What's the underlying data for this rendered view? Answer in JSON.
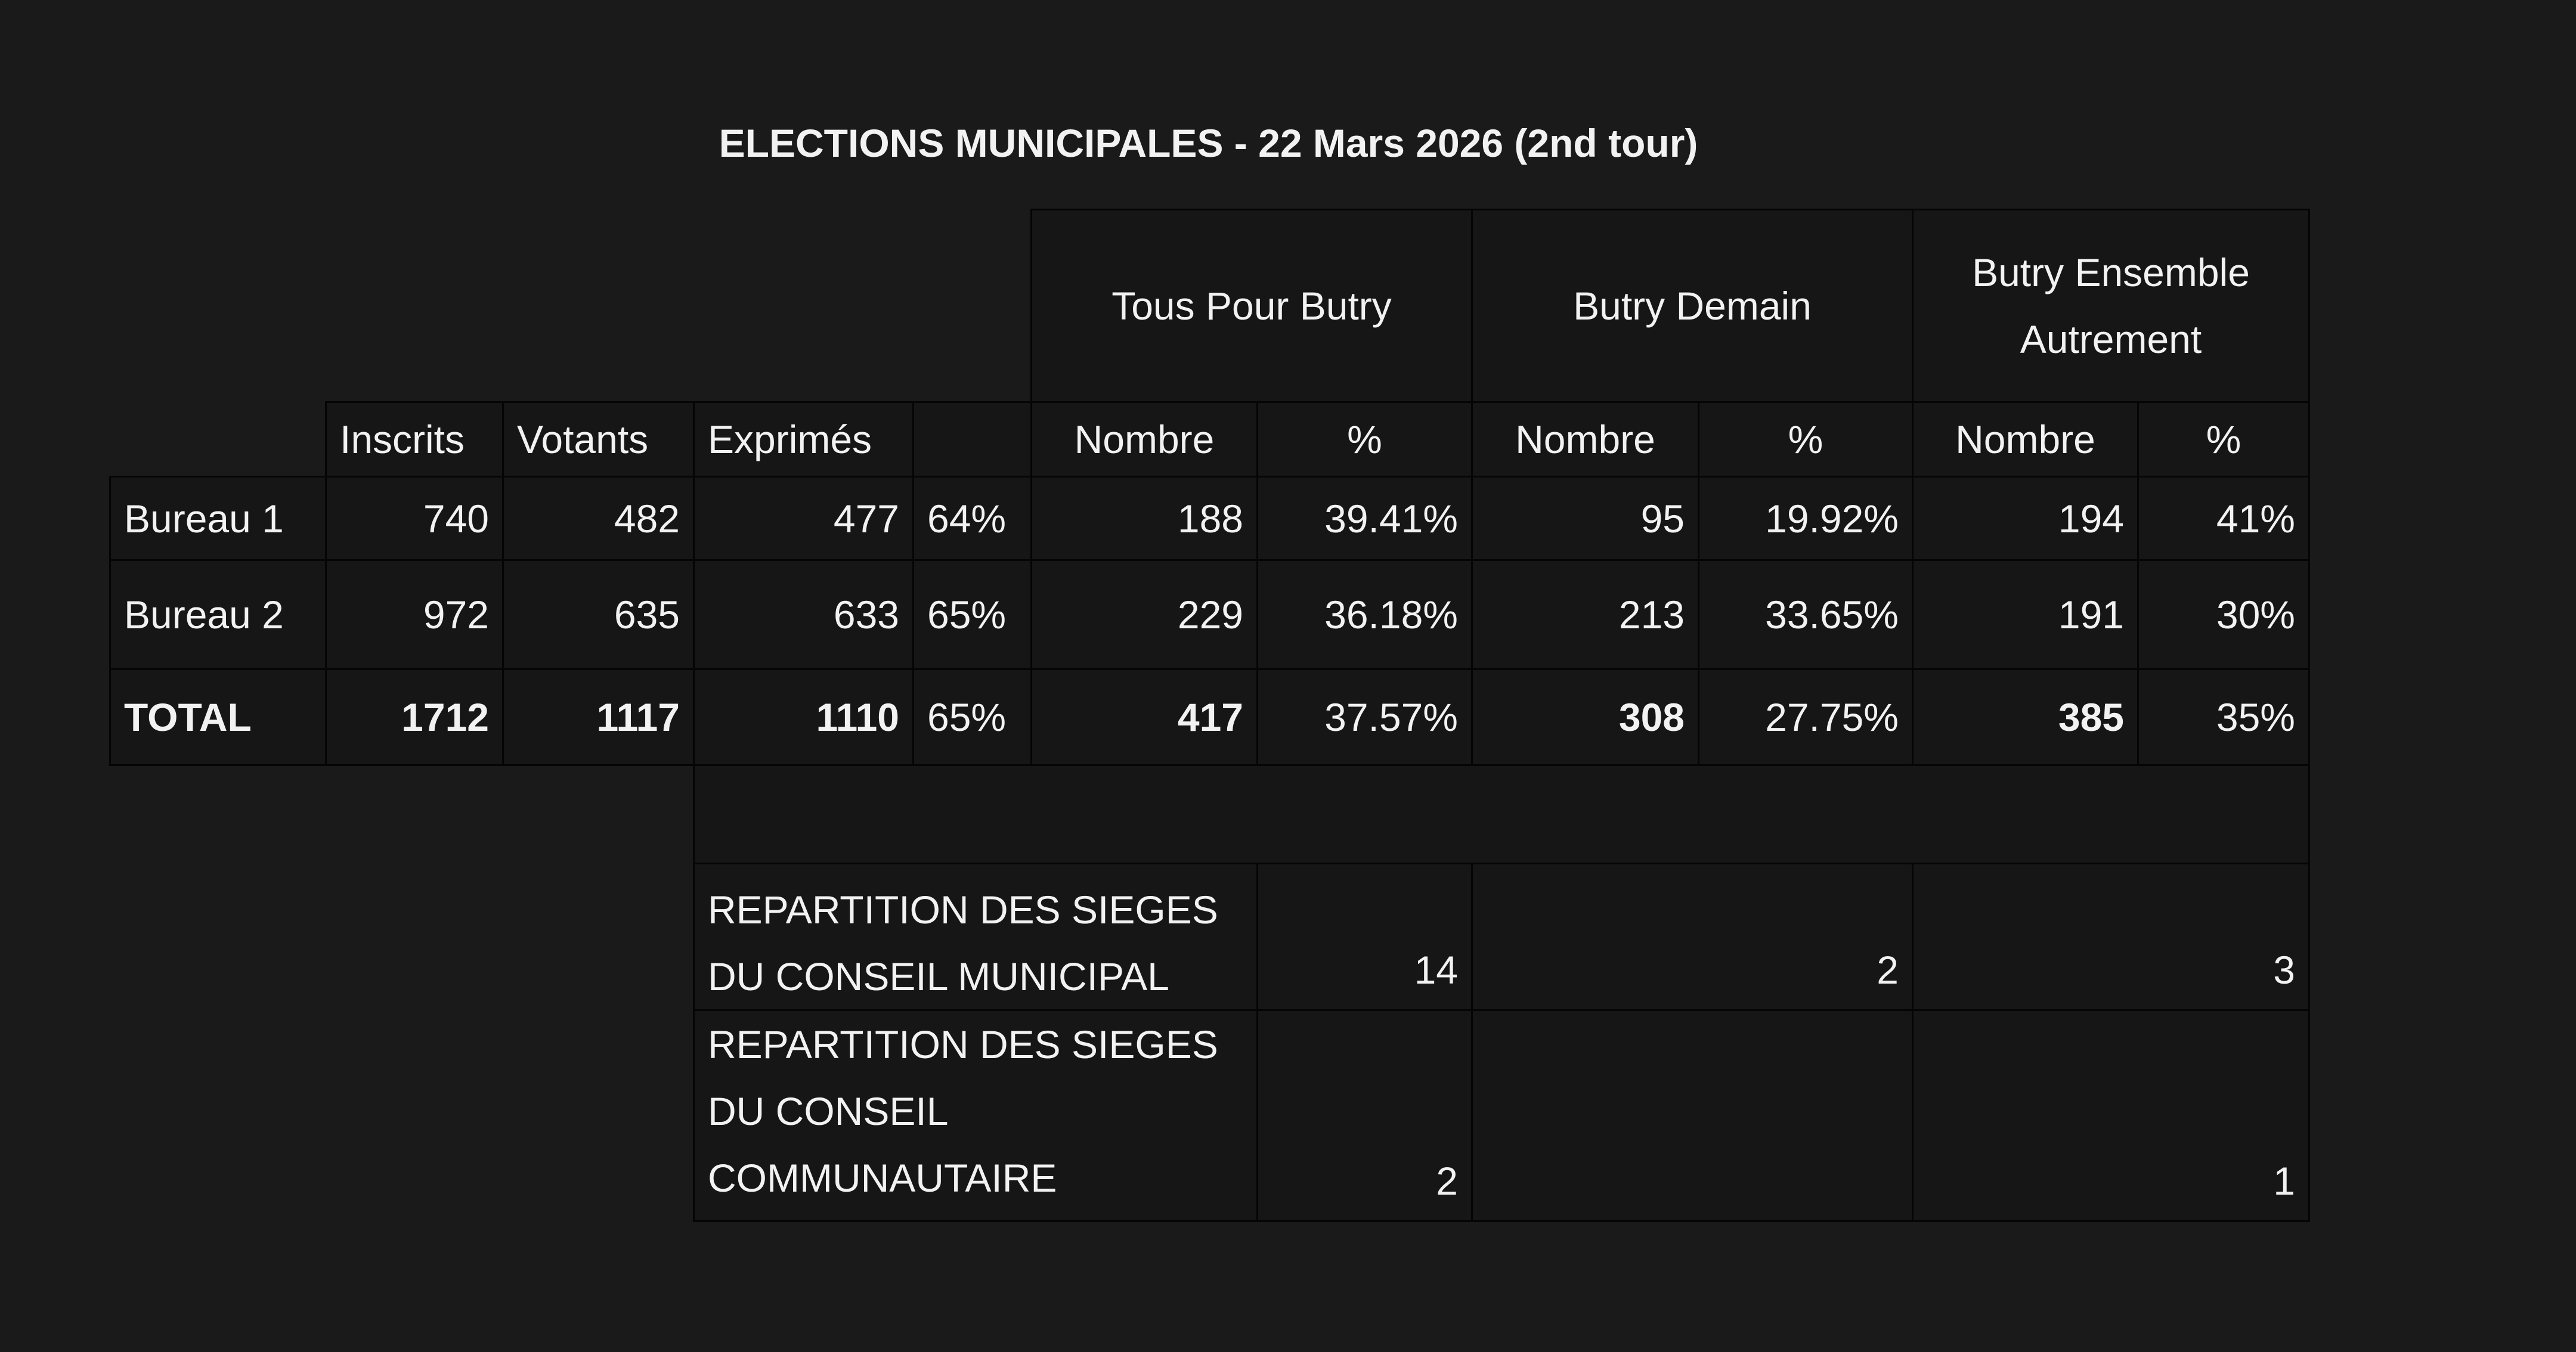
{
  "title": "ELECTIONS MUNICIPALES - 22 Mars 2026 (2nd tour)",
  "lists": [
    "Tous Pour Butry",
    "Butry Demain",
    "Butry Ensemble Autrement"
  ],
  "headers": {
    "inscrits": "Inscrits",
    "votants": "Votants",
    "exprimes": "Exprimés",
    "nombre": "Nombre",
    "pct": "%"
  },
  "rows": [
    {
      "label": "Bureau 1",
      "inscrits": "740",
      "votants": "482",
      "exprimes": "477",
      "participation": "64%",
      "n1": "188",
      "p1": "39.41%",
      "n2": "95",
      "p2": "19.92%",
      "n3": "194",
      "p3": "41%"
    },
    {
      "label": "Bureau 2",
      "inscrits": "972",
      "votants": "635",
      "exprimes": "633",
      "participation": "65%",
      "n1": "229",
      "p1": "36.18%",
      "n2": "213",
      "p2": "33.65%",
      "n3": "191",
      "p3": "30%"
    },
    {
      "label": "TOTAL",
      "inscrits": "1712",
      "votants": "1117",
      "exprimes": "1110",
      "participation": "65%",
      "n1": "417",
      "p1": "37.57%",
      "n2": "308",
      "p2": "27.75%",
      "n3": "385",
      "p3": "35%"
    }
  ],
  "seats": [
    {
      "label_lines": [
        "REPARTITION DES SIEGES",
        "DU CONSEIL MUNICIPAL"
      ],
      "v1": "14",
      "v2": "2",
      "v3": "3"
    },
    {
      "label_lines": [
        "REPARTITION DES SIEGES",
        "DU CONSEIL",
        "COMMUNAUTAIRE"
      ],
      "v1": "2",
      "v2": "",
      "v3": "1"
    }
  ]
}
